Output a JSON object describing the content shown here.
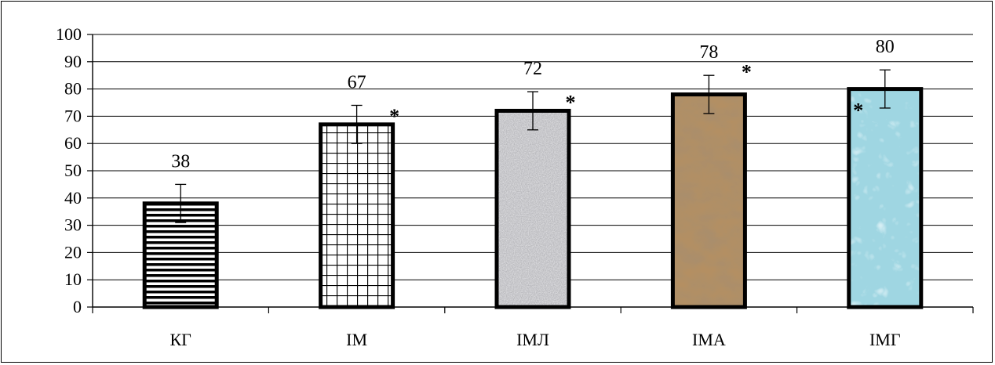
{
  "chart_data": {
    "type": "bar",
    "title": "",
    "xlabel": "",
    "ylabel": "",
    "ylim": [
      0,
      100
    ],
    "yticks": [
      0,
      10,
      20,
      30,
      40,
      50,
      60,
      70,
      80,
      90,
      100
    ],
    "grid": true,
    "categories": [
      "КГ",
      "ІМ",
      "ІМЛ",
      "ІМА",
      "ІМГ"
    ],
    "values": [
      38,
      67,
      72,
      78,
      80
    ],
    "error_bars": [
      7,
      7,
      7,
      7,
      7
    ],
    "data_labels": [
      "38",
      "67",
      "72",
      "78",
      "80"
    ],
    "significance_marks": [
      "",
      "*",
      "*",
      "*",
      "*"
    ],
    "bar_fills": [
      "horizontal-stripes",
      "grid",
      "granite",
      "crumpled-kraft-paper",
      "water-drops"
    ]
  }
}
